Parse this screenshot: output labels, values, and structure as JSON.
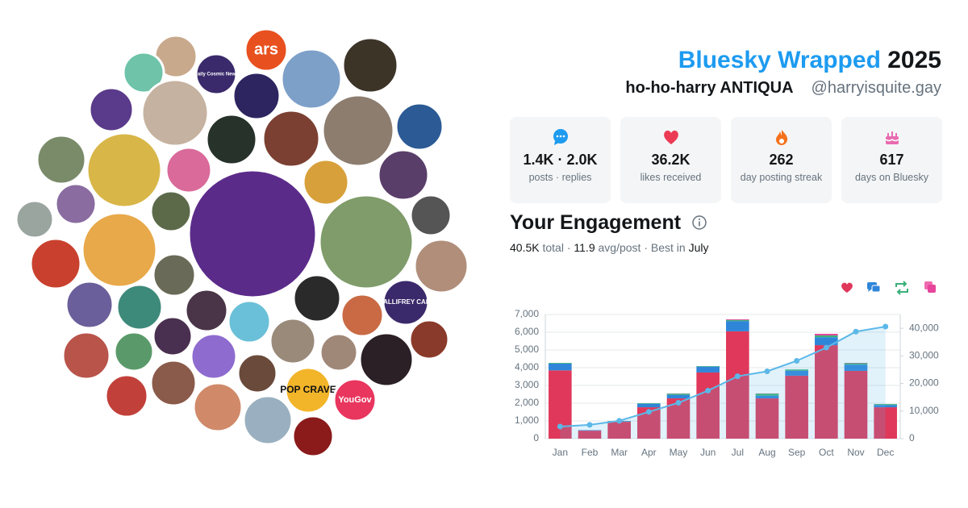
{
  "header": {
    "title": "Bluesky Wrapped",
    "year": "2025",
    "display_name": "ho-ho-harry ANTIQUA",
    "handle": "@harryisquite.gay"
  },
  "avatar_labels": [
    "ars",
    "Daily Cosmic News",
    "THE GALLIFREY CABARET",
    "POP CRAVE",
    "YouGov"
  ],
  "stats": [
    {
      "value": "1.4K · 2.0K",
      "label": "posts · replies"
    },
    {
      "value": "36.2K",
      "label": "likes received"
    },
    {
      "value": "262",
      "label": "day posting streak"
    },
    {
      "value": "617",
      "label": "days on Bluesky"
    }
  ],
  "engagement": {
    "title": "Your Engagement",
    "summary": [
      "40.5K",
      "total ·",
      "11.9",
      "avg/post · Best in",
      "July"
    ]
  },
  "chart_data": {
    "type": "bar",
    "stacked": true,
    "grid": true,
    "categories": [
      "Jan",
      "Feb",
      "Mar",
      "Apr",
      "May",
      "Jun",
      "Jul",
      "Aug",
      "Sep",
      "Oct",
      "Nov",
      "Dec"
    ],
    "series": [
      {
        "color": "#e0385a",
        "values": [
          3850,
          450,
          950,
          1770,
          2270,
          3730,
          6050,
          2270,
          3550,
          5270,
          3820,
          1770
        ]
      },
      {
        "color": "#2f86d9",
        "values": [
          380,
          30,
          40,
          200,
          200,
          330,
          580,
          150,
          280,
          450,
          350,
          130
        ]
      },
      {
        "color": "#3bb07a",
        "values": [
          40,
          0,
          10,
          30,
          70,
          30,
          60,
          120,
          70,
          100,
          80,
          50
        ]
      },
      {
        "color": "#e6459a",
        "values": [
          0,
          0,
          0,
          0,
          10,
          0,
          40,
          10,
          0,
          90,
          20,
          0
        ]
      },
      {
        "type": "line",
        "axis": "y2",
        "color": "#5bb8e8",
        "values": [
          4400,
          5000,
          6470,
          9700,
          13000,
          17400,
          22600,
          24400,
          28200,
          33000,
          38800,
          40600
        ]
      }
    ],
    "ylim": [
      0,
      7000
    ],
    "yticks": [
      0,
      {
        "value": 1000,
        "label": "1,000"
      },
      {
        "value": 2000,
        "label": "2,000"
      },
      {
        "value": 3000,
        "label": "3,000"
      },
      {
        "value": 4000,
        "label": "4,000"
      },
      {
        "value": 5000,
        "label": "5,000"
      },
      {
        "value": 6000,
        "label": "6,000"
      },
      {
        "value": 7000,
        "label": "7,000"
      }
    ],
    "y2lim": [
      0,
      45000
    ],
    "y2ticks": [
      0,
      {
        "value": 10000,
        "label": "10,000"
      },
      {
        "value": 20000,
        "label": "20,000"
      },
      {
        "value": 30000,
        "label": "30,000"
      },
      {
        "value": 40000,
        "label": "40,000"
      }
    ]
  }
}
